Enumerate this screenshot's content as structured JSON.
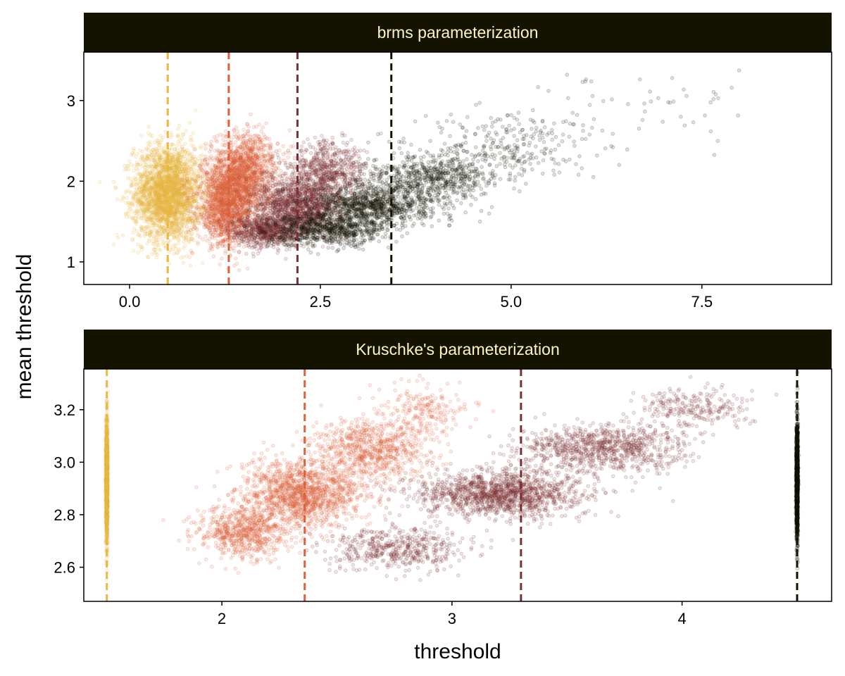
{
  "colors": {
    "strip_bg": "#131300",
    "strip_text": "#FFF6C2",
    "threshold_1": "#E8B840",
    "threshold_2": "#DC6139",
    "threshold_3": "#7A2E34",
    "threshold_4": "#131300"
  },
  "chart_data": {
    "type": "scatter",
    "xlabel": "threshold",
    "ylabel": "mean threshold",
    "legend": "none",
    "grid": false,
    "panels": [
      {
        "title": "brms parameterization",
        "xlim": [
          -0.6,
          9.2
        ],
        "ylim": [
          0.72,
          3.6
        ],
        "x_ticks": [
          "0.0",
          "2.5",
          "5.0",
          "7.5"
        ],
        "x_tick_values": [
          0,
          2.5,
          5,
          7.5
        ],
        "y_ticks": [
          "1",
          "2",
          "3"
        ],
        "y_tick_values": [
          1,
          2,
          3
        ],
        "series": [
          {
            "color_key": "threshold_1",
            "x_mean": 0.5,
            "clouds": [
              {
                "x": 0.5,
                "y": 1.85,
                "sx": 0.22,
                "sy": 0.3,
                "n": 2600
              }
            ]
          },
          {
            "color_key": "threshold_2",
            "x_mean": 1.3,
            "clouds": [
              {
                "x": 1.25,
                "y": 1.6,
                "sx": 0.18,
                "sy": 0.2,
                "n": 900
              },
              {
                "x": 1.4,
                "y": 1.95,
                "sx": 0.22,
                "sy": 0.22,
                "n": 1400
              },
              {
                "x": 1.55,
                "y": 2.3,
                "sx": 0.2,
                "sy": 0.18,
                "n": 500
              }
            ]
          },
          {
            "color_key": "threshold_3",
            "x_mean": 2.2,
            "clouds": [
              {
                "x": 1.8,
                "y": 1.38,
                "sx": 0.25,
                "sy": 0.1,
                "n": 700
              },
              {
                "x": 2.2,
                "y": 1.7,
                "sx": 0.28,
                "sy": 0.18,
                "n": 1300
              },
              {
                "x": 2.6,
                "y": 2.1,
                "sx": 0.25,
                "sy": 0.2,
                "n": 700
              }
            ]
          },
          {
            "color_key": "threshold_4",
            "x_mean": 3.43,
            "clouds": [
              {
                "x": 2.6,
                "y": 1.4,
                "sx": 0.4,
                "sy": 0.1,
                "n": 800
              },
              {
                "x": 3.2,
                "y": 1.7,
                "sx": 0.4,
                "sy": 0.13,
                "n": 1000
              },
              {
                "x": 4.0,
                "y": 2.05,
                "sx": 0.45,
                "sy": 0.15,
                "n": 700
              },
              {
                "x": 5.0,
                "y": 2.45,
                "sx": 0.6,
                "sy": 0.18,
                "n": 250
              },
              {
                "x": 6.6,
                "y": 2.95,
                "sx": 0.9,
                "sy": 0.2,
                "n": 50
              }
            ]
          }
        ]
      },
      {
        "title": "Kruschke's parameterization",
        "xlim": [
          1.4,
          4.65
        ],
        "ylim": [
          2.47,
          3.355
        ],
        "x_ticks": [
          "2",
          "3",
          "4"
        ],
        "x_tick_values": [
          2,
          3,
          4
        ],
        "y_ticks": [
          "2.6",
          "2.8",
          "3.0",
          "3.2"
        ],
        "y_tick_values": [
          2.6,
          2.8,
          3.0,
          3.2
        ],
        "series": [
          {
            "color_key": "threshold_1",
            "x_mean": 1.5,
            "clouds": [
              {
                "x": 1.5,
                "y": 2.93,
                "sx": 0.002,
                "sy": 0.11,
                "n": 1500
              }
            ]
          },
          {
            "color_key": "threshold_2",
            "x_mean": 2.36,
            "clouds": [
              {
                "x": 2.1,
                "y": 2.73,
                "sx": 0.1,
                "sy": 0.05,
                "n": 700
              },
              {
                "x": 2.35,
                "y": 2.88,
                "sx": 0.13,
                "sy": 0.06,
                "n": 1400
              },
              {
                "x": 2.65,
                "y": 3.05,
                "sx": 0.13,
                "sy": 0.06,
                "n": 800
              },
              {
                "x": 2.9,
                "y": 3.2,
                "sx": 0.1,
                "sy": 0.05,
                "n": 200
              }
            ]
          },
          {
            "color_key": "threshold_3",
            "x_mean": 3.3,
            "clouds": [
              {
                "x": 2.75,
                "y": 2.67,
                "sx": 0.15,
                "sy": 0.04,
                "n": 500
              },
              {
                "x": 3.2,
                "y": 2.88,
                "sx": 0.18,
                "sy": 0.045,
                "n": 1400
              },
              {
                "x": 3.65,
                "y": 3.05,
                "sx": 0.18,
                "sy": 0.045,
                "n": 900
              },
              {
                "x": 4.05,
                "y": 3.2,
                "sx": 0.12,
                "sy": 0.04,
                "n": 250
              }
            ]
          },
          {
            "color_key": "threshold_4",
            "x_mean": 4.5,
            "clouds": [
              {
                "x": 4.5,
                "y": 2.93,
                "sx": 0.002,
                "sy": 0.11,
                "n": 1500
              }
            ]
          }
        ]
      }
    ]
  }
}
